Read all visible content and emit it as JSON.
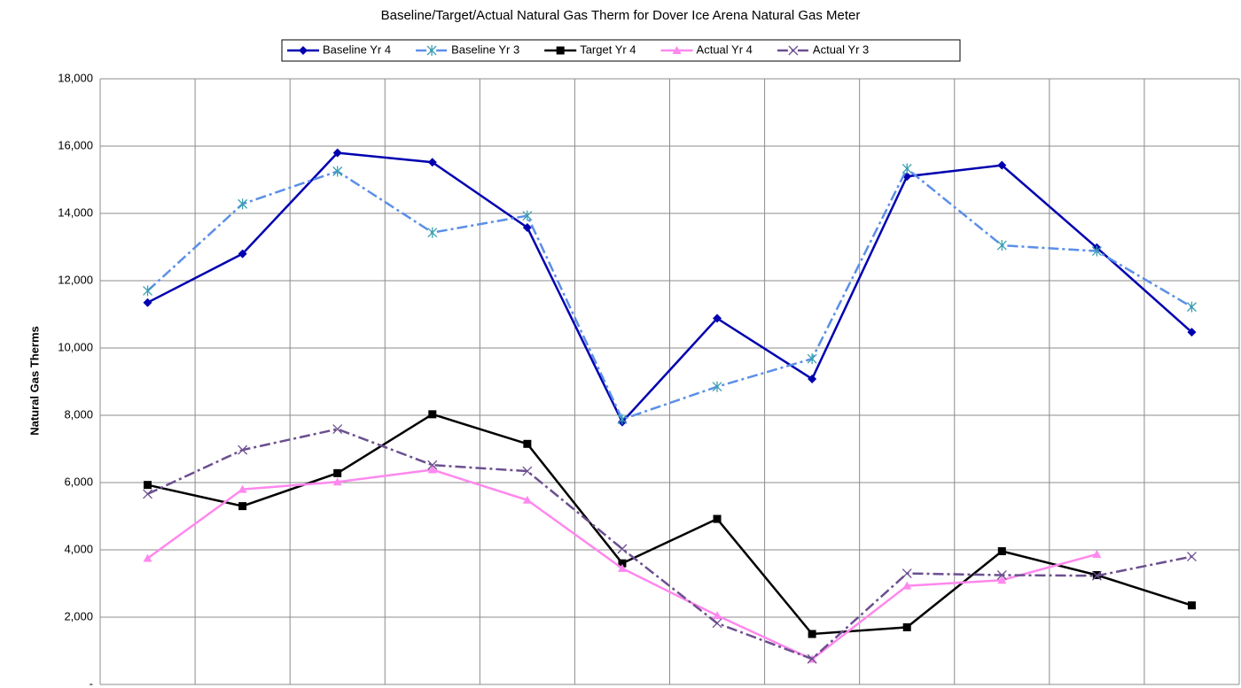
{
  "chart_data": {
    "type": "line",
    "title": "Baseline/Target/Actual Natural Gas Therm for Dover Ice Arena Natural Gas Meter",
    "y_label": "Natural Gas Therms",
    "categories": [
      null,
      null,
      null,
      null,
      null,
      null,
      null,
      null,
      null,
      null,
      null,
      null
    ],
    "ylim": [
      0,
      18000
    ],
    "yticks": [
      {
        "value": 0,
        "label": "-"
      },
      {
        "value": 2000,
        "label": "2,000"
      },
      {
        "value": 4000,
        "label": "4,000"
      },
      {
        "value": 6000,
        "label": "6,000"
      },
      {
        "value": 8000,
        "label": "8,000"
      },
      {
        "value": 10000,
        "label": "10,000"
      },
      {
        "value": 12000,
        "label": "12,000"
      },
      {
        "value": 14000,
        "label": "14,000"
      },
      {
        "value": 16000,
        "label": "16,000"
      },
      {
        "value": 18000,
        "label": "18,000"
      }
    ],
    "grid": true,
    "legend": "top",
    "series": [
      {
        "name": "Baseline Yr 4",
        "color": "#0000b0",
        "line_style": "solid",
        "marker": "diamond",
        "values": [
          11350,
          12800,
          15800,
          15520,
          13580,
          7800,
          10880,
          9080,
          15100,
          15430,
          12980,
          10470
        ]
      },
      {
        "name": "Baseline Yr 3",
        "color": "#5b8fe8",
        "line_style": "dashdot",
        "marker": "asterisk",
        "values": [
          11700,
          14280,
          15250,
          13430,
          13930,
          7880,
          8850,
          9680,
          15330,
          13050,
          12880,
          11220
        ]
      },
      {
        "name": "Target Yr 4",
        "color": "#000000",
        "line_style": "solid",
        "marker": "square",
        "values": [
          5930,
          5300,
          6280,
          8030,
          7150,
          3600,
          4920,
          1500,
          1700,
          3960,
          3250,
          2350
        ]
      },
      {
        "name": "Actual Yr 4",
        "color": "#ff88ee",
        "line_style": "solid",
        "marker": "triangle",
        "values": [
          3750,
          5800,
          6020,
          6380,
          5480,
          3450,
          2050,
          750,
          2930,
          3100,
          3870,
          null
        ]
      },
      {
        "name": "Actual Yr 3",
        "color": "#6b4f8f",
        "line_style": "dashdot",
        "marker": "x",
        "values": [
          5660,
          6970,
          7590,
          6520,
          6340,
          4030,
          1820,
          760,
          3300,
          3250,
          3230,
          3800
        ]
      }
    ]
  }
}
